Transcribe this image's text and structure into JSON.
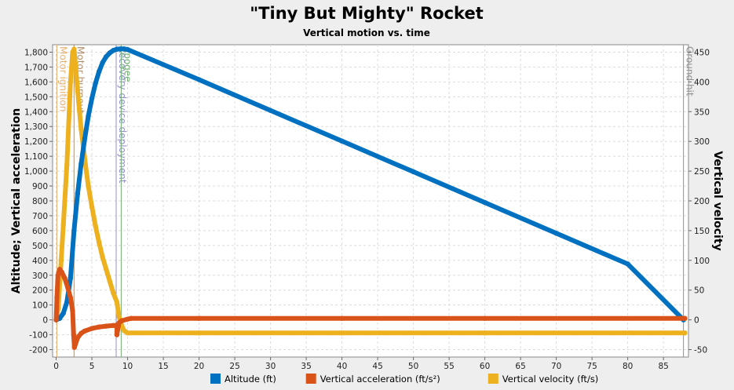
{
  "chart_data": {
    "type": "line",
    "title": "\"Tiny But Mighty\" Rocket",
    "subtitle": "Vertical motion vs. time",
    "ylabel_left": "Altitude; Vertical acceleration",
    "ylabel_right": "Vertical velocity",
    "xlim": [
      -0.5,
      88.5
    ],
    "ylim_left": [
      -250,
      1850
    ],
    "ylim_right": [
      -62.5,
      462.5
    ],
    "x_ticks": [
      0,
      5,
      10,
      15,
      20,
      25,
      30,
      35,
      40,
      45,
      50,
      55,
      60,
      65,
      70,
      75,
      80,
      85
    ],
    "y_left_ticks": [
      -200,
      -100,
      0,
      100,
      200,
      300,
      400,
      500,
      600,
      700,
      800,
      900,
      1000,
      1100,
      1200,
      1300,
      1400,
      1500,
      1600,
      1700,
      1800
    ],
    "y_left_tick_labels": [
      "-200",
      "-100",
      "0",
      "100",
      "200",
      "300",
      "400",
      "500",
      "600",
      "700",
      "800",
      "900",
      "1,000",
      "1,100",
      "1,200",
      "1,300",
      "1,400",
      "1,500",
      "1,600",
      "1,700",
      "1,800"
    ],
    "y_right_ticks": [
      -50,
      0,
      50,
      100,
      150,
      200,
      250,
      300,
      350,
      400,
      450
    ],
    "grid": true,
    "legend_position": "bottom",
    "events": [
      {
        "label": "Motor ignition",
        "t": 0.1,
        "color": "#e8b070"
      },
      {
        "label": "Motor burnout",
        "t": 2.5,
        "color": "#b09070"
      },
      {
        "label": "Recovery device deployment",
        "t": 8.4,
        "color": "#9090c8"
      },
      {
        "label": "Apogee",
        "t": 9.1,
        "color": "#70b070"
      },
      {
        "label": "Ground hit",
        "t": 87.8,
        "color": "#909090"
      }
    ],
    "series": [
      {
        "name": "Altitude (ft)",
        "axis": "left",
        "color": "#0070c0",
        "points": [
          [
            0,
            0
          ],
          [
            0.5,
            10
          ],
          [
            1,
            45
          ],
          [
            1.5,
            120
          ],
          [
            2,
            280
          ],
          [
            2.5,
            600
          ],
          [
            3,
            850
          ],
          [
            3.5,
            1050
          ],
          [
            4,
            1220
          ],
          [
            4.5,
            1370
          ],
          [
            5,
            1490
          ],
          [
            5.5,
            1590
          ],
          [
            6,
            1670
          ],
          [
            6.5,
            1730
          ],
          [
            7,
            1770
          ],
          [
            7.5,
            1795
          ],
          [
            8,
            1812
          ],
          [
            8.5,
            1820
          ],
          [
            9,
            1822
          ],
          [
            9.5,
            1822
          ],
          [
            10,
            1818
          ],
          [
            20,
            1615
          ],
          [
            30,
            1408
          ],
          [
            40,
            1202
          ],
          [
            50,
            996
          ],
          [
            60,
            789
          ],
          [
            70,
            582
          ],
          [
            80,
            376
          ],
          [
            87.8,
            0
          ]
        ]
      },
      {
        "name": "Vertical acceleration (ft/s²)",
        "axis": "left",
        "color": "#d95319",
        "points": [
          [
            0,
            0
          ],
          [
            0.1,
            150
          ],
          [
            0.25,
            300
          ],
          [
            0.5,
            340
          ],
          [
            0.8,
            320
          ],
          [
            1.2,
            280
          ],
          [
            1.6,
            220
          ],
          [
            2,
            150
          ],
          [
            2.3,
            60
          ],
          [
            2.45,
            -100
          ],
          [
            2.55,
            -185
          ],
          [
            3,
            -120
          ],
          [
            3.5,
            -90
          ],
          [
            4,
            -75
          ],
          [
            5,
            -58
          ],
          [
            6,
            -48
          ],
          [
            7,
            -42
          ],
          [
            8,
            -38
          ],
          [
            8.5,
            -35
          ],
          [
            8.5,
            -100
          ],
          [
            8.8,
            -20
          ],
          [
            9.2,
            -5
          ],
          [
            10,
            5
          ],
          [
            10.5,
            10
          ],
          [
            20,
            10
          ],
          [
            40,
            10
          ],
          [
            60,
            10
          ],
          [
            88,
            10
          ]
        ]
      },
      {
        "name": "Vertical velocity (ft/s)",
        "axis": "right",
        "color": "#edb120",
        "points": [
          [
            0,
            0
          ],
          [
            0.3,
            20
          ],
          [
            0.7,
            100
          ],
          [
            1,
            160
          ],
          [
            1.5,
            260
          ],
          [
            2,
            400
          ],
          [
            2.3,
            450
          ],
          [
            2.5,
            455
          ],
          [
            2.7,
            430
          ],
          [
            3,
            385
          ],
          [
            3.5,
            320
          ],
          [
            4,
            270
          ],
          [
            4.5,
            225
          ],
          [
            5,
            190
          ],
          [
            5.5,
            158
          ],
          [
            6,
            130
          ],
          [
            6.5,
            105
          ],
          [
            7,
            85
          ],
          [
            7.5,
            65
          ],
          [
            8,
            45
          ],
          [
            8.5,
            30
          ],
          [
            8.8,
            5
          ],
          [
            9.2,
            -10
          ],
          [
            9.5,
            -18
          ],
          [
            10,
            -22
          ],
          [
            20,
            -22
          ],
          [
            40,
            -22
          ],
          [
            60,
            -22
          ],
          [
            88,
            -22
          ]
        ]
      }
    ],
    "legend": [
      {
        "label": "Altitude (ft)",
        "color": "#0070c0"
      },
      {
        "label": "Vertical acceleration (ft/s²)",
        "color": "#d95319"
      },
      {
        "label": "Vertical velocity (ft/s)",
        "color": "#edb120"
      }
    ]
  }
}
